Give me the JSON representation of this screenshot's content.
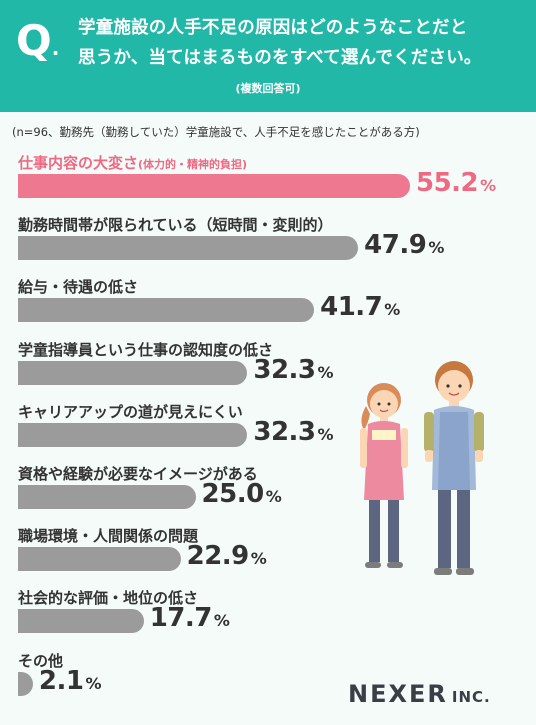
{
  "question": {
    "mark": "Q",
    "mark_dot": ".",
    "line1": "学童施設の人手不足の原因はどのようなことだと",
    "line2": "思うか、当てはまるものをすべて選んでください。",
    "note": "(複数回答可)"
  },
  "sample_note": "(n=96、勤務先（勤務していた）学童施設で、人手不足を感じたことがある方)",
  "brand": {
    "name": "NEXER",
    "suffix": "INC."
  },
  "colors": {
    "header": "#21b8a8",
    "highlight": "#ef7891",
    "bar": "#9b9b9b"
  },
  "chart_data": {
    "type": "bar",
    "orientation": "horizontal",
    "unit": "%",
    "xlim": [
      0,
      100
    ],
    "categories": [
      {
        "label": "仕事内容の大変さ",
        "sub": "(体力的・精神的負担)"
      },
      {
        "label": "勤務時間帯が限られている（短時間・変則的）",
        "sub": ""
      },
      {
        "label": "給与・待遇の低さ",
        "sub": ""
      },
      {
        "label": "学童指導員という仕事の認知度の低さ",
        "sub": ""
      },
      {
        "label": "キャリアアップの道が見えにくい",
        "sub": ""
      },
      {
        "label": "資格や経験が必要なイメージがある",
        "sub": ""
      },
      {
        "label": "職場環境・人間関係の問題",
        "sub": ""
      },
      {
        "label": "社会的な評価・地位の低さ",
        "sub": ""
      },
      {
        "label": "その他",
        "sub": ""
      }
    ],
    "values": [
      55.2,
      47.9,
      41.7,
      32.3,
      32.3,
      25.0,
      22.9,
      17.7,
      2.1
    ],
    "value_labels": [
      "55.2",
      "47.9",
      "41.7",
      "32.3",
      "32.3",
      "25.0",
      "22.9",
      "17.7",
      "2.1"
    ],
    "highlight_index": 0
  }
}
